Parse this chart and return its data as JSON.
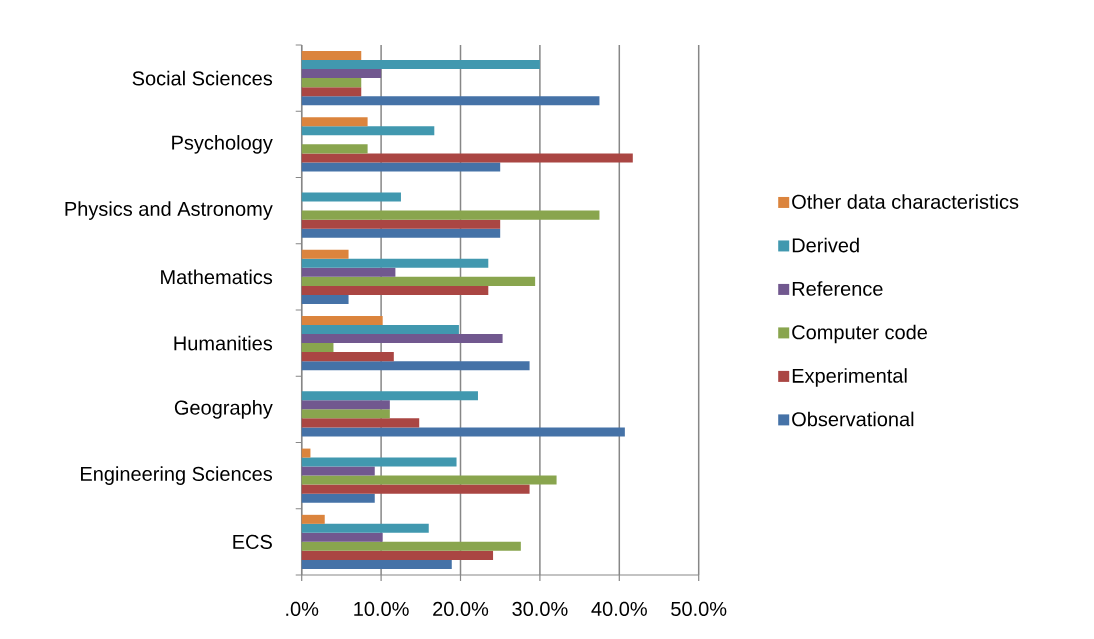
{
  "chart_data": {
    "type": "bar",
    "orientation": "horizontal",
    "categories": [
      "Social Sciences",
      "Psychology",
      "Physics and Astronomy",
      "Mathematics",
      "Humanities",
      "Geography",
      "Engineering Sciences",
      "ECS"
    ],
    "series": [
      {
        "name": "Observational",
        "color": "#4572a7",
        "values": [
          37.5,
          25.0,
          25.0,
          5.9,
          28.7,
          40.7,
          9.2,
          18.9
        ]
      },
      {
        "name": "Experimental",
        "color": "#aa4643",
        "values": [
          7.5,
          41.7,
          25.0,
          23.5,
          11.6,
          14.8,
          28.7,
          24.1
        ]
      },
      {
        "name": "Computer code",
        "color": "#89a54e",
        "values": [
          7.5,
          8.3,
          37.5,
          29.4,
          4.0,
          11.1,
          32.1,
          27.6
        ]
      },
      {
        "name": "Reference",
        "color": "#71588f",
        "values": [
          10.0,
          null,
          null,
          11.8,
          25.3,
          11.1,
          9.2,
          10.2
        ]
      },
      {
        "name": "Derived",
        "color": "#4198af",
        "values": [
          30.0,
          16.7,
          12.5,
          23.5,
          19.8,
          22.2,
          19.5,
          16.0
        ]
      },
      {
        "name": "Other data characteristics",
        "color": "#db843d",
        "values": [
          7.5,
          8.3,
          null,
          5.9,
          10.2,
          null,
          1.1,
          2.9
        ]
      }
    ],
    "xlim": [
      0,
      50
    ],
    "xticks": [
      {
        "value": 0,
        "label": ".0%"
      },
      {
        "value": 10,
        "label": "10.0%"
      },
      {
        "value": 20,
        "label": "20.0%"
      },
      {
        "value": 30,
        "label": "30.0%"
      },
      {
        "value": 40,
        "label": "40.0%"
      },
      {
        "value": 50,
        "label": "50.0%"
      }
    ],
    "grid": "x",
    "legend": "right"
  }
}
